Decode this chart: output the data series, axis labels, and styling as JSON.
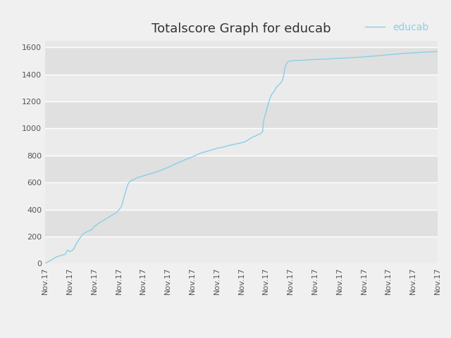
{
  "title": "Totalscore Graph for educab",
  "legend_label": "educab",
  "line_color": "#89cfe8",
  "figure_bg_color": "#f0f0f0",
  "plot_bg_color": "#e8e8e8",
  "band_color_light": "#ebebeb",
  "band_color_dark": "#e0e0e0",
  "grid_color": "#ffffff",
  "ylim": [
    0,
    1650
  ],
  "yticks": [
    0,
    200,
    400,
    600,
    800,
    1000,
    1200,
    1400,
    1600
  ],
  "title_fontsize": 13,
  "tick_fontsize": 8,
  "legend_fontsize": 10,
  "num_xticks": 17,
  "data_points": [
    [
      0,
      0
    ],
    [
      0.3,
      30
    ],
    [
      0.5,
      50
    ],
    [
      0.7,
      60
    ],
    [
      0.9,
      70
    ],
    [
      1.0,
      100
    ],
    [
      1.1,
      90
    ],
    [
      1.2,
      95
    ],
    [
      1.3,
      115
    ],
    [
      1.4,
      150
    ],
    [
      1.6,
      200
    ],
    [
      1.7,
      220
    ],
    [
      1.9,
      240
    ],
    [
      2.0,
      245
    ],
    [
      2.1,
      255
    ],
    [
      2.2,
      275
    ],
    [
      2.4,
      300
    ],
    [
      2.6,
      320
    ],
    [
      2.8,
      340
    ],
    [
      3.0,
      360
    ],
    [
      3.2,
      380
    ],
    [
      3.4,
      420
    ],
    [
      3.5,
      480
    ],
    [
      3.6,
      540
    ],
    [
      3.7,
      590
    ],
    [
      3.8,
      610
    ],
    [
      3.9,
      620
    ],
    [
      4.0,
      625
    ],
    [
      4.1,
      635
    ],
    [
      4.3,
      645
    ],
    [
      4.5,
      655
    ],
    [
      4.7,
      665
    ],
    [
      5.0,
      680
    ],
    [
      5.3,
      700
    ],
    [
      5.6,
      720
    ],
    [
      5.9,
      745
    ],
    [
      6.2,
      765
    ],
    [
      6.5,
      785
    ],
    [
      6.7,
      800
    ],
    [
      6.9,
      815
    ],
    [
      7.1,
      825
    ],
    [
      7.3,
      835
    ],
    [
      7.5,
      845
    ],
    [
      7.7,
      855
    ],
    [
      7.9,
      860
    ],
    [
      8.1,
      870
    ],
    [
      8.3,
      878
    ],
    [
      8.5,
      885
    ],
    [
      8.7,
      892
    ],
    [
      8.9,
      900
    ],
    [
      9.0,
      910
    ],
    [
      9.1,
      920
    ],
    [
      9.2,
      930
    ],
    [
      9.3,
      940
    ],
    [
      9.4,
      945
    ],
    [
      9.5,
      955
    ],
    [
      9.6,
      960
    ],
    [
      9.7,
      975
    ],
    [
      9.75,
      1060
    ],
    [
      9.8,
      1090
    ],
    [
      9.85,
      1120
    ],
    [
      9.9,
      1150
    ],
    [
      9.95,
      1180
    ],
    [
      10.0,
      1210
    ],
    [
      10.05,
      1230
    ],
    [
      10.1,
      1250
    ],
    [
      10.2,
      1270
    ],
    [
      10.3,
      1300
    ],
    [
      10.4,
      1320
    ],
    [
      10.5,
      1335
    ],
    [
      10.6,
      1360
    ],
    [
      10.65,
      1400
    ],
    [
      10.7,
      1450
    ],
    [
      10.75,
      1475
    ],
    [
      10.8,
      1490
    ],
    [
      10.85,
      1495
    ],
    [
      10.9,
      1497
    ],
    [
      11.0,
      1500
    ],
    [
      11.5,
      1505
    ],
    [
      12.0,
      1510
    ],
    [
      12.5,
      1513
    ],
    [
      13.0,
      1518
    ],
    [
      13.5,
      1522
    ],
    [
      14.0,
      1527
    ],
    [
      14.5,
      1533
    ],
    [
      15.0,
      1540
    ],
    [
      15.5,
      1548
    ],
    [
      16.0,
      1555
    ],
    [
      16.5,
      1560
    ],
    [
      17.0,
      1565
    ],
    [
      17.5,
      1568
    ]
  ]
}
